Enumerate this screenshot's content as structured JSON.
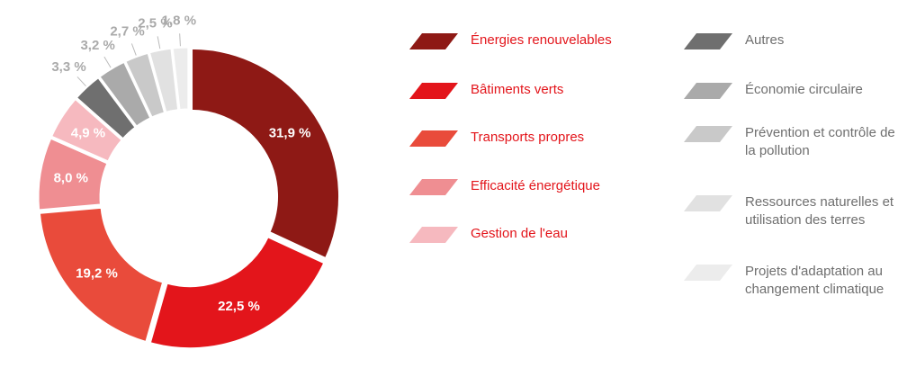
{
  "chart_data": {
    "type": "donut",
    "categories": [
      "Énergies renouvelables",
      "Bâtiments verts",
      "Transports propres",
      "Efficacité énergétique",
      "Gestion de l'eau",
      "Autres",
      "Économie circulaire",
      "Prévention et contrôle de la pollution",
      "Ressources naturelles et utilisation des terres",
      "Projets d'adaptation au changement climatique"
    ],
    "values": [
      31.9,
      22.5,
      19.2,
      8.0,
      4.9,
      3.3,
      3.2,
      2.7,
      2.5,
      1.8
    ],
    "value_labels": [
      "31,9 %",
      "22,5 %",
      "19,2 %",
      "8,0 %",
      "4,9 %",
      "3,3 %",
      "3,2 %",
      "2,7 %",
      "2,5 %",
      "1,8 %"
    ],
    "colors": [
      "#8e1915",
      "#e3151b",
      "#e94b3b",
      "#ef8e92",
      "#f6b9bf",
      "#6f6f6f",
      "#aaaaaa",
      "#c9c9c9",
      "#e1e1e1",
      "#ececec"
    ],
    "legend": "right"
  }
}
